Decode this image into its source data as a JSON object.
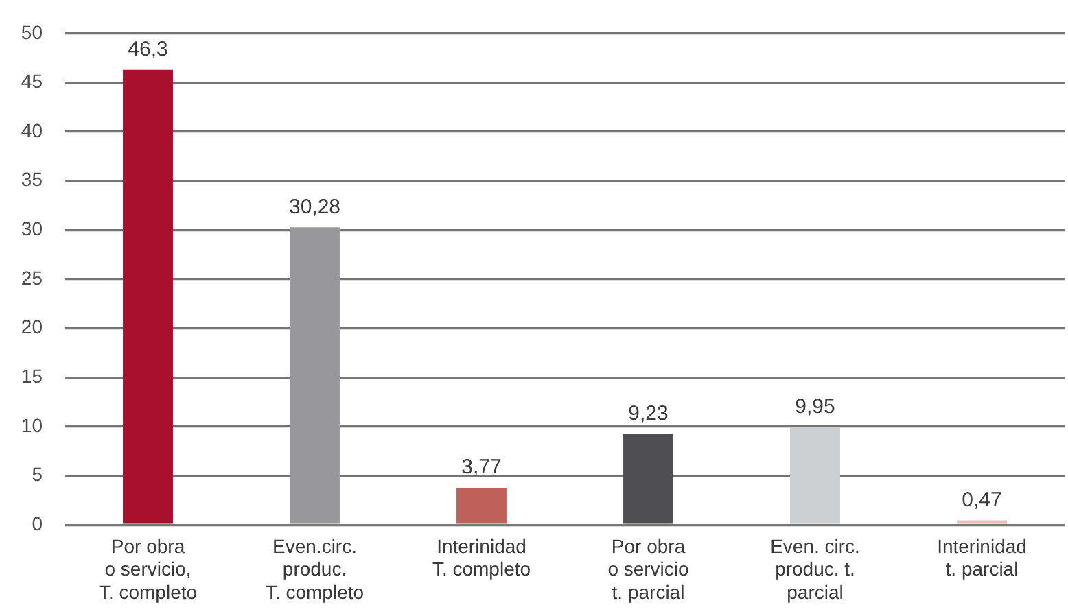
{
  "chart_data": {
    "type": "bar",
    "categories": [
      "Por obra\no servicio,\nT. completo",
      "Even.circ.\nproduc.\nT. completo",
      "Interinidad\nT. completo",
      "Por obra\no servicio\nt. parcial",
      "Even. circ.\nproduc. t.\nparcial",
      "Interinidad\nt. parcial"
    ],
    "values": [
      46.3,
      30.28,
      3.77,
      9.23,
      9.95,
      0.47
    ],
    "colors": [
      "#a8102e",
      "#98989c",
      "#c0605a",
      "#4f4e52",
      "#cdd0d3",
      "#e8c0bc"
    ],
    "value_labels": [
      "46,3",
      "30,28",
      "3,77",
      "9,23",
      "9,95",
      "0,47"
    ],
    "ylim": [
      0,
      50
    ],
    "yticks": [
      0,
      5,
      10,
      15,
      20,
      25,
      30,
      35,
      40,
      45,
      50
    ],
    "grid": "y"
  }
}
